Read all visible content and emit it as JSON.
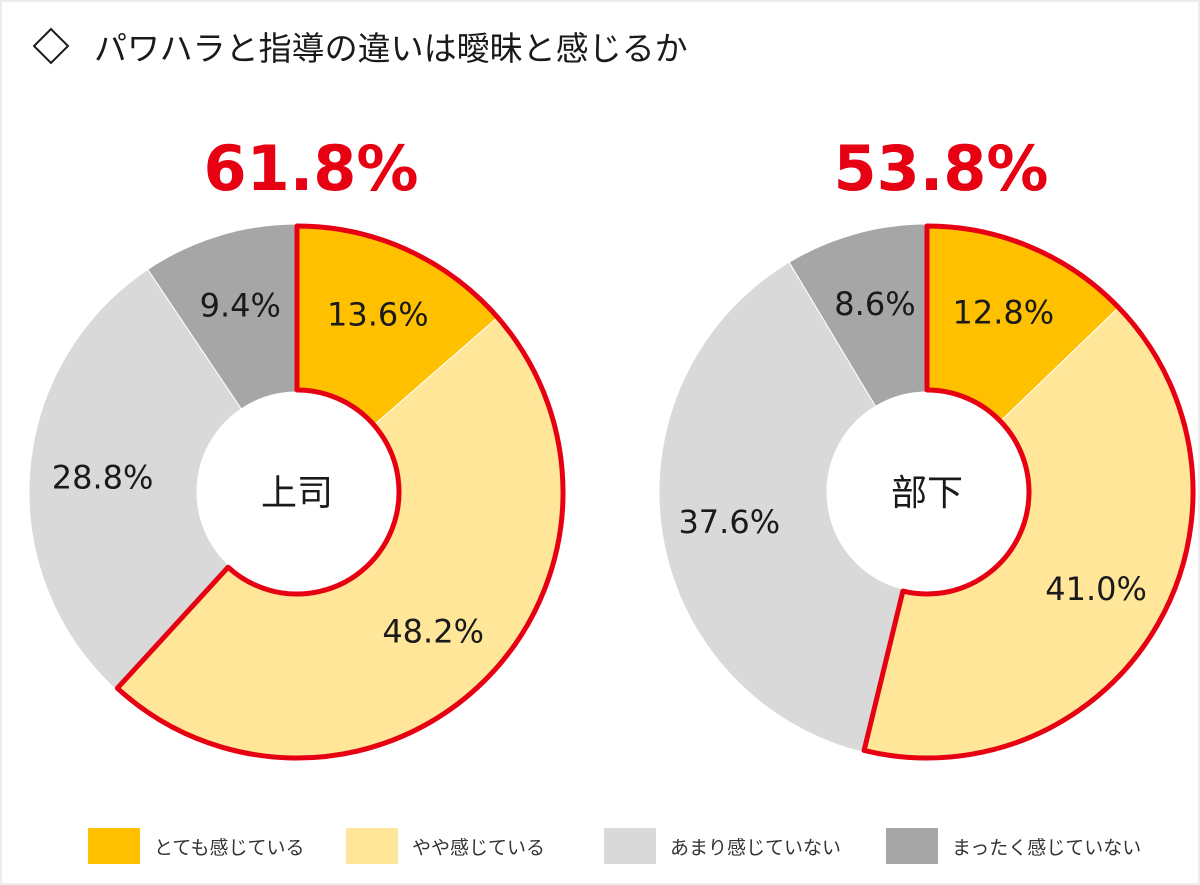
{
  "title": "パワハラと指導の違いは曖昧と感じるか",
  "colors": {
    "strong": "#ffc000",
    "somewhat": "#ffe699",
    "notmuch": "#d9d9d9",
    "notatall": "#a6a6a6",
    "highlight": "#e60012",
    "text": "#1a1a1a"
  },
  "chart_data": [
    {
      "type": "pie",
      "center_label": "上司",
      "highlight_total": "61.8%",
      "slices": [
        {
          "name": "とても感じている",
          "value": 13.6,
          "label": "13.6%"
        },
        {
          "name": "やや感じている",
          "value": 48.2,
          "label": "48.2%"
        },
        {
          "name": "あまり感じていない",
          "value": 28.8,
          "label": "28.8%"
        },
        {
          "name": "まったく感じていない",
          "value": 9.4,
          "label": "9.4%"
        }
      ]
    },
    {
      "type": "pie",
      "center_label": "部下",
      "highlight_total": "53.8%",
      "slices": [
        {
          "name": "とても感じている",
          "value": 12.8,
          "label": "12.8%"
        },
        {
          "name": "やや感じている",
          "value": 41.0,
          "label": "41.0%"
        },
        {
          "name": "あまり感じていない",
          "value": 37.6,
          "label": "37.6%"
        },
        {
          "name": "まったく感じていない",
          "value": 8.6,
          "label": "8.6%"
        }
      ]
    }
  ],
  "legend": [
    {
      "label": "とても感じている",
      "color": "#ffc000"
    },
    {
      "label": "やや感じている",
      "color": "#ffe699"
    },
    {
      "label": "あまり感じていない",
      "color": "#d9d9d9"
    },
    {
      "label": "まったく感じていない",
      "color": "#a6a6a6"
    }
  ]
}
